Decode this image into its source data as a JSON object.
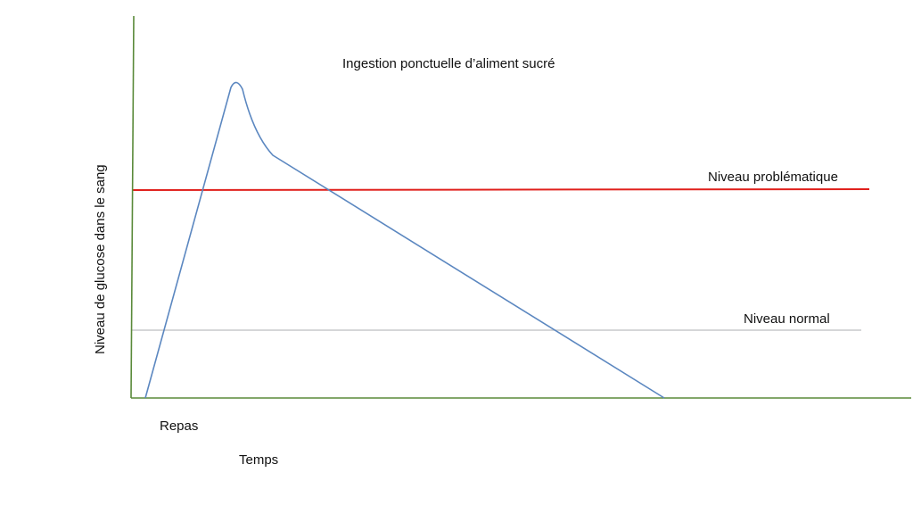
{
  "title": "Ingestion ponctuelle d’aliment sucré",
  "y_axis_label": "Niveau de glucose dans le sang",
  "x_axis_label": "Temps",
  "event_label": "Repas",
  "reference_lines": [
    {
      "label": "Niveau problématique",
      "color": "#e0201c"
    },
    {
      "label": "Niveau normal",
      "color": "#c7c9cc"
    }
  ],
  "colors": {
    "axis": "#5a8a3a",
    "curve": "#5b87c0"
  }
}
